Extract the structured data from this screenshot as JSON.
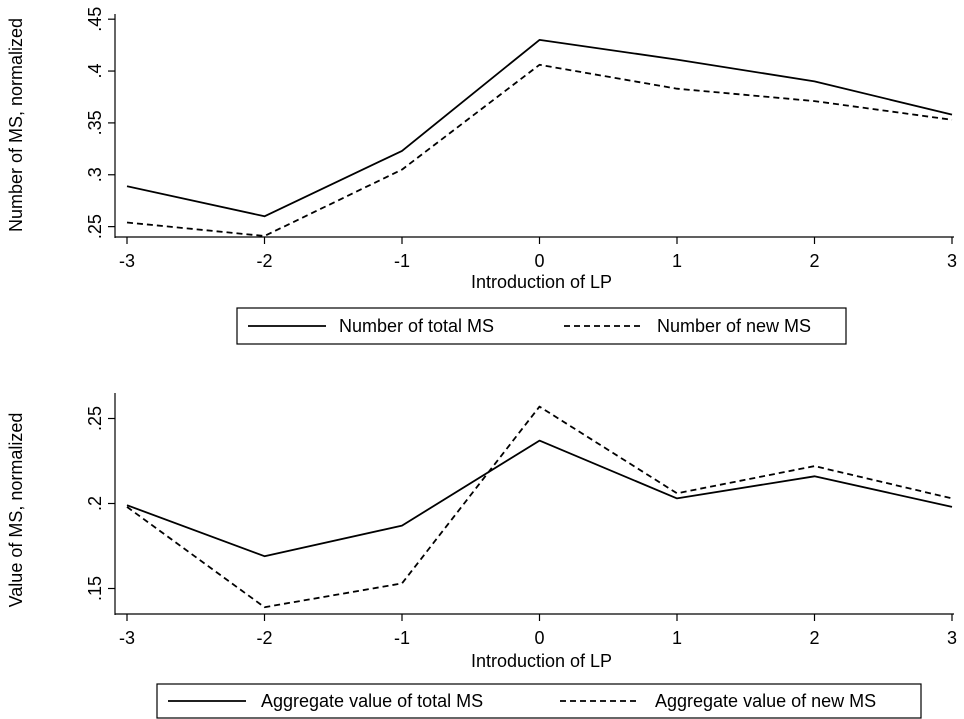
{
  "chart_data": [
    {
      "type": "line",
      "xlabel": "Introduction of LP",
      "ylabel": "Number of MS, normalized",
      "x": [
        -3,
        -2,
        -1,
        0,
        1,
        2,
        3
      ],
      "x_tick_labels": [
        "-3",
        "-2",
        "-1",
        "0",
        "1",
        "2",
        "3"
      ],
      "y_ticks": [
        0.25,
        0.3,
        0.35,
        0.4,
        0.45
      ],
      "y_tick_labels": [
        ".25",
        ".3",
        ".35",
        ".4",
        ".45"
      ],
      "ylim": [
        0.24,
        0.455
      ],
      "grid": false,
      "legend_position": "bottom",
      "series": [
        {
          "name": "Number of total MS",
          "style": "solid",
          "values": [
            0.289,
            0.26,
            0.323,
            0.43,
            0.411,
            0.39,
            0.358
          ]
        },
        {
          "name": "Number of new MS",
          "style": "dashed",
          "values": [
            0.254,
            0.241,
            0.305,
            0.406,
            0.383,
            0.371,
            0.353
          ]
        }
      ]
    },
    {
      "type": "line",
      "xlabel": "Introduction of LP",
      "ylabel": "Value of MS, normalized",
      "x": [
        -3,
        -2,
        -1,
        0,
        1,
        2,
        3
      ],
      "x_tick_labels": [
        "-3",
        "-2",
        "-1",
        "0",
        "1",
        "2",
        "3"
      ],
      "y_ticks": [
        0.15,
        0.2,
        0.25
      ],
      "y_tick_labels": [
        ".15",
        ".2",
        ".25"
      ],
      "ylim": [
        0.135,
        0.265
      ],
      "grid": false,
      "legend_position": "bottom",
      "series": [
        {
          "name": "Aggregate value of total MS",
          "style": "solid",
          "values": [
            0.199,
            0.169,
            0.187,
            0.237,
            0.203,
            0.216,
            0.198
          ]
        },
        {
          "name": "Aggregate value of new MS",
          "style": "dashed",
          "values": [
            0.198,
            0.139,
            0.153,
            0.257,
            0.206,
            0.222,
            0.203
          ]
        }
      ]
    }
  ]
}
